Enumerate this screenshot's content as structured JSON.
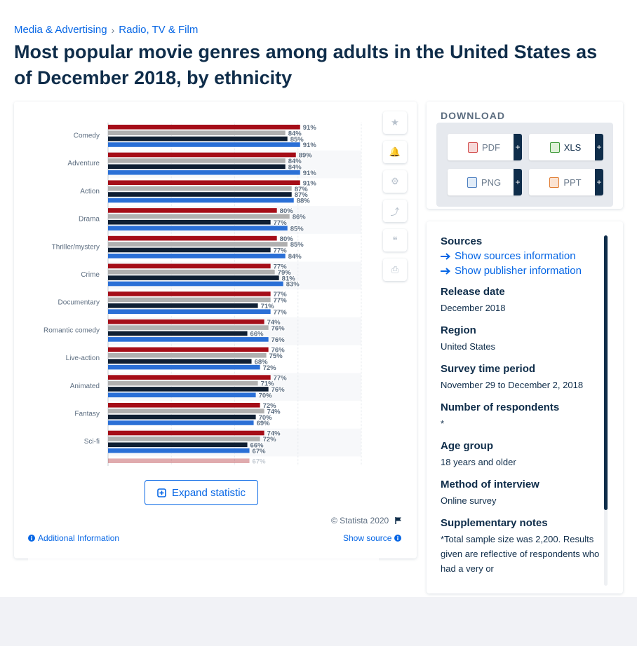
{
  "breadcrumb": {
    "parent": "Media & Advertising",
    "child": "Radio, TV & Film",
    "sep": "›"
  },
  "title": "Most popular movie genres among adults in the United States as of December 2018, by ethnicity",
  "chart_data": {
    "type": "bar",
    "orientation": "horizontal",
    "categories": [
      "Comedy",
      "Adventure",
      "Action",
      "Drama",
      "Thriller/mystery",
      "Crime",
      "Documentary",
      "Romantic comedy",
      "Live-action",
      "Animated",
      "Fantasy",
      "Sci-fi"
    ],
    "series": [
      {
        "color": "#a50d18",
        "values": [
          91,
          89,
          91,
          80,
          80,
          77,
          77,
          74,
          76,
          77,
          72,
          74
        ]
      },
      {
        "color": "#b0b0b0",
        "values": [
          84,
          84,
          87,
          86,
          85,
          79,
          77,
          76,
          75,
          71,
          74,
          72
        ]
      },
      {
        "color": "#0f1f33",
        "values": [
          85,
          84,
          87,
          77,
          77,
          81,
          71,
          66,
          68,
          76,
          70,
          66
        ]
      },
      {
        "color": "#2a6fd6",
        "values": [
          91,
          91,
          88,
          85,
          84,
          83,
          77,
          76,
          72,
          70,
          69,
          67
        ]
      }
    ],
    "partial_next_value": "67%",
    "unit": "%",
    "xlim": [
      0,
      120
    ],
    "grid": true,
    "legend": "none"
  },
  "tools": {
    "star": "★",
    "bell": "🔔",
    "gear": "⚙",
    "share": "⤴",
    "quote": "❝",
    "print": "⎙"
  },
  "expand_label": "Expand statistic",
  "copyright": "© Statista 2020",
  "additional_info": "Additional Information",
  "show_source": "Show source",
  "download": {
    "title": "DOWNLOAD",
    "pdf": "PDF",
    "xls": "XLS",
    "png": "PNG",
    "ppt": "PPT",
    "plus": "+"
  },
  "info": {
    "sources_h": "Sources",
    "sources_link": "Show sources information",
    "publisher_link": "Show publisher information",
    "release_h": "Release date",
    "release_v": "December 2018",
    "region_h": "Region",
    "region_v": "United States",
    "survey_h": "Survey time period",
    "survey_v": "November 29 to December 2, 2018",
    "respondents_h": "Number of respondents",
    "respondents_v": "*",
    "age_h": "Age group",
    "age_v": "18 years and older",
    "method_h": "Method of interview",
    "method_v": "Online survey",
    "notes_h": "Supplementary notes",
    "notes_v": "*Total sample size was 2,200. Results given are reflective of respondents who had a very or"
  },
  "colors": {
    "accent": "#0666e5",
    "navy": "#0f2d4a"
  }
}
